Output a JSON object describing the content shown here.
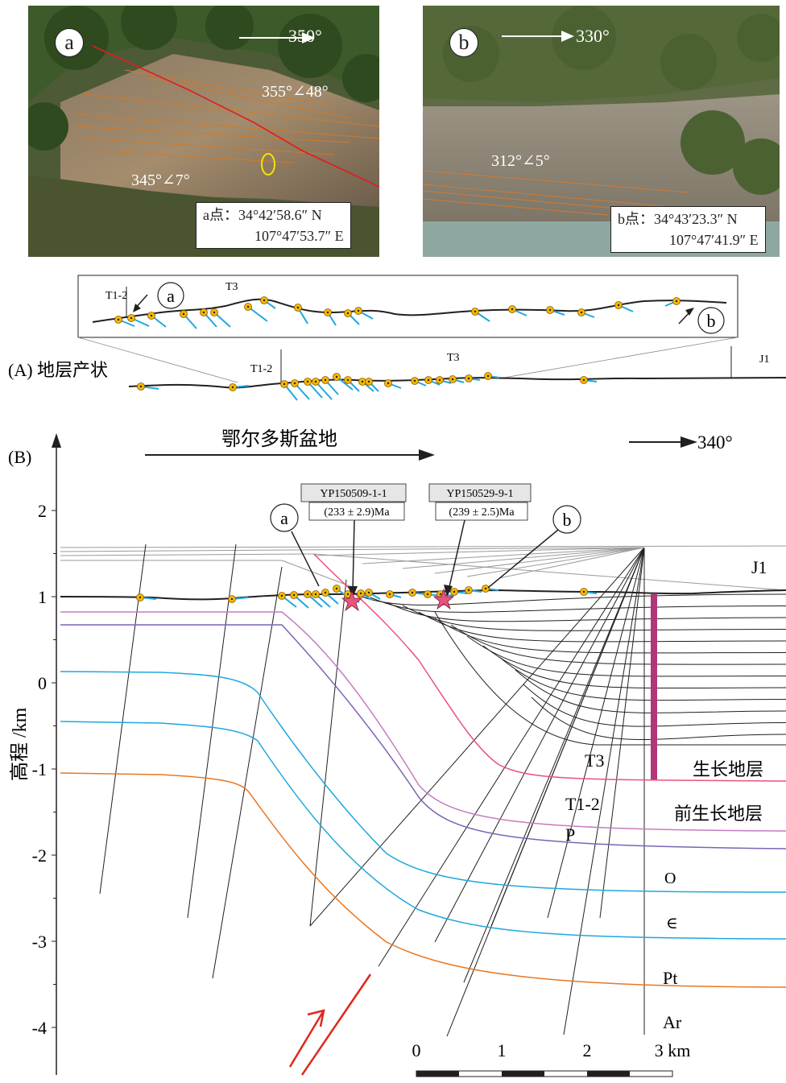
{
  "photo_a": {
    "circle": "a",
    "direction": "350°",
    "attitude_upper": "355°∠48°",
    "attitude_lower": "345°∠7°",
    "coord_line1": "a点：34°42′58.6″  N",
    "coord_line2": "107°47′53.7″ E"
  },
  "photo_b": {
    "circle": "b",
    "direction": "330°",
    "attitude": "312°∠5°",
    "coord_line1": "b点：34°43′23.3″  N",
    "coord_line2": "107°47′41.9″ E"
  },
  "panel_a": {
    "title": "(A) 地层产状",
    "inset_t12": "T1-2",
    "inset_t3": "T3",
    "inset_a": "a",
    "inset_b": "b",
    "main_t12": "T1-2",
    "main_t3": "T3",
    "main_j1": "J1"
  },
  "panel_b": {
    "title": "(B)",
    "basin": "鄂尔多斯盆地",
    "direction": "340°",
    "y_axis_label": "高程 /km",
    "y_ticks": [
      "2",
      "1",
      "0",
      "-1",
      "-2",
      "-3",
      "-4"
    ],
    "sample1_id": "YP150509-1-1",
    "sample1_age": "(233 ± 2.9)Ma",
    "sample2_id": "YP150529-9-1",
    "sample2_age": "(239 ± 2.5)Ma",
    "callout_a": "a",
    "callout_b": "b",
    "unit_j1": "J1",
    "unit_t3": "T3",
    "unit_t12": "T1-2",
    "unit_p": "P",
    "unit_o": "O",
    "unit_cambrian": "∈",
    "unit_pt": "Pt",
    "unit_ar": "Ar",
    "growth_strata": "生长地层",
    "pregrowth_strata": "前生长地层",
    "scale_ticks": [
      "0",
      "1",
      "2",
      "3 km"
    ]
  },
  "colors": {
    "t3": "#e8547a",
    "t12": "#c77bc0",
    "p": "#7b64b5",
    "o_cambrian": "#1fa8de",
    "pt": "#e87722",
    "growth_bar": "#b3357a",
    "dip": "#1fa8de",
    "dot": "#f5b800",
    "fault_arrow": "#e1261c"
  }
}
